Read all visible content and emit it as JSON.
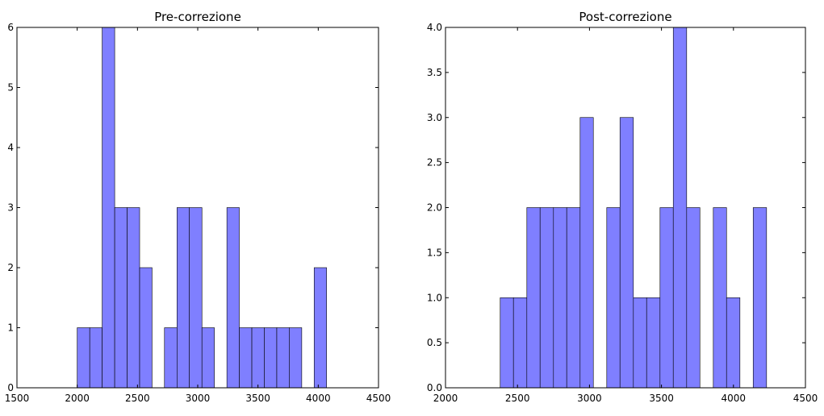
{
  "chart_data": [
    {
      "type": "bar",
      "title": "Pre-correzione",
      "xlabel": "",
      "ylabel": "",
      "xlim": [
        1500,
        4500
      ],
      "ylim": [
        0,
        6
      ],
      "xticks": [
        1500,
        2000,
        2500,
        3000,
        3500,
        4000,
        4500
      ],
      "xtick_labels": [
        "1500",
        "2000",
        "2500",
        "3000",
        "3500",
        "4000",
        "4500"
      ],
      "yticks": [
        0,
        1,
        2,
        3,
        4,
        5,
        6
      ],
      "ytick_labels": [
        "0",
        "1",
        "2",
        "3",
        "4",
        "5",
        "6"
      ],
      "grid": false,
      "bar_color": "#7f7fff",
      "bar_edge_color": "#000000",
      "bins": [
        {
          "x0": 2000,
          "x1": 2104,
          "value": 1
        },
        {
          "x0": 2104,
          "x1": 2207,
          "value": 1
        },
        {
          "x0": 2207,
          "x1": 2311,
          "value": 6
        },
        {
          "x0": 2311,
          "x1": 2414,
          "value": 3
        },
        {
          "x0": 2414,
          "x1": 2518,
          "value": 3
        },
        {
          "x0": 2518,
          "x1": 2621,
          "value": 2
        },
        {
          "x0": 2724,
          "x1": 2828,
          "value": 1
        },
        {
          "x0": 2828,
          "x1": 2931,
          "value": 3
        },
        {
          "x0": 2931,
          "x1": 3035,
          "value": 3
        },
        {
          "x0": 3035,
          "x1": 3138,
          "value": 1
        },
        {
          "x0": 3242,
          "x1": 3345,
          "value": 3
        },
        {
          "x0": 3345,
          "x1": 3449,
          "value": 1
        },
        {
          "x0": 3449,
          "x1": 3552,
          "value": 1
        },
        {
          "x0": 3552,
          "x1": 3656,
          "value": 1
        },
        {
          "x0": 3656,
          "x1": 3759,
          "value": 1
        },
        {
          "x0": 3759,
          "x1": 3863,
          "value": 1
        },
        {
          "x0": 3966,
          "x1": 4069,
          "value": 2
        }
      ]
    },
    {
      "type": "bar",
      "title": "Post-correzione",
      "xlabel": "",
      "ylabel": "",
      "xlim": [
        2000,
        4500
      ],
      "ylim": [
        0,
        4
      ],
      "xticks": [
        2000,
        2500,
        3000,
        3500,
        4000,
        4500
      ],
      "xtick_labels": [
        "2000",
        "2500",
        "3000",
        "3500",
        "4000",
        "4500"
      ],
      "yticks": [
        0,
        0.5,
        1,
        1.5,
        2,
        2.5,
        3,
        3.5,
        4
      ],
      "ytick_labels": [
        "0.0",
        "0.5",
        "1.0",
        "1.5",
        "2.0",
        "2.5",
        "3.0",
        "3.5",
        "4.0"
      ],
      "grid": false,
      "bar_color": "#7f7fff",
      "bar_edge_color": "#000000",
      "bins": [
        {
          "x0": 2380,
          "x1": 2472,
          "value": 1
        },
        {
          "x0": 2472,
          "x1": 2565,
          "value": 1
        },
        {
          "x0": 2565,
          "x1": 2657,
          "value": 2
        },
        {
          "x0": 2657,
          "x1": 2750,
          "value": 2
        },
        {
          "x0": 2750,
          "x1": 2842,
          "value": 2
        },
        {
          "x0": 2842,
          "x1": 2935,
          "value": 2
        },
        {
          "x0": 2935,
          "x1": 3027,
          "value": 3
        },
        {
          "x0": 3120,
          "x1": 3212,
          "value": 2
        },
        {
          "x0": 3212,
          "x1": 3305,
          "value": 3
        },
        {
          "x0": 3305,
          "x1": 3397,
          "value": 1
        },
        {
          "x0": 3397,
          "x1": 3490,
          "value": 1
        },
        {
          "x0": 3490,
          "x1": 3582,
          "value": 2
        },
        {
          "x0": 3582,
          "x1": 3675,
          "value": 4
        },
        {
          "x0": 3675,
          "x1": 3767,
          "value": 2
        },
        {
          "x0": 3860,
          "x1": 3952,
          "value": 2
        },
        {
          "x0": 3952,
          "x1": 4045,
          "value": 1
        },
        {
          "x0": 4137,
          "x1": 4230,
          "value": 2
        }
      ]
    }
  ]
}
